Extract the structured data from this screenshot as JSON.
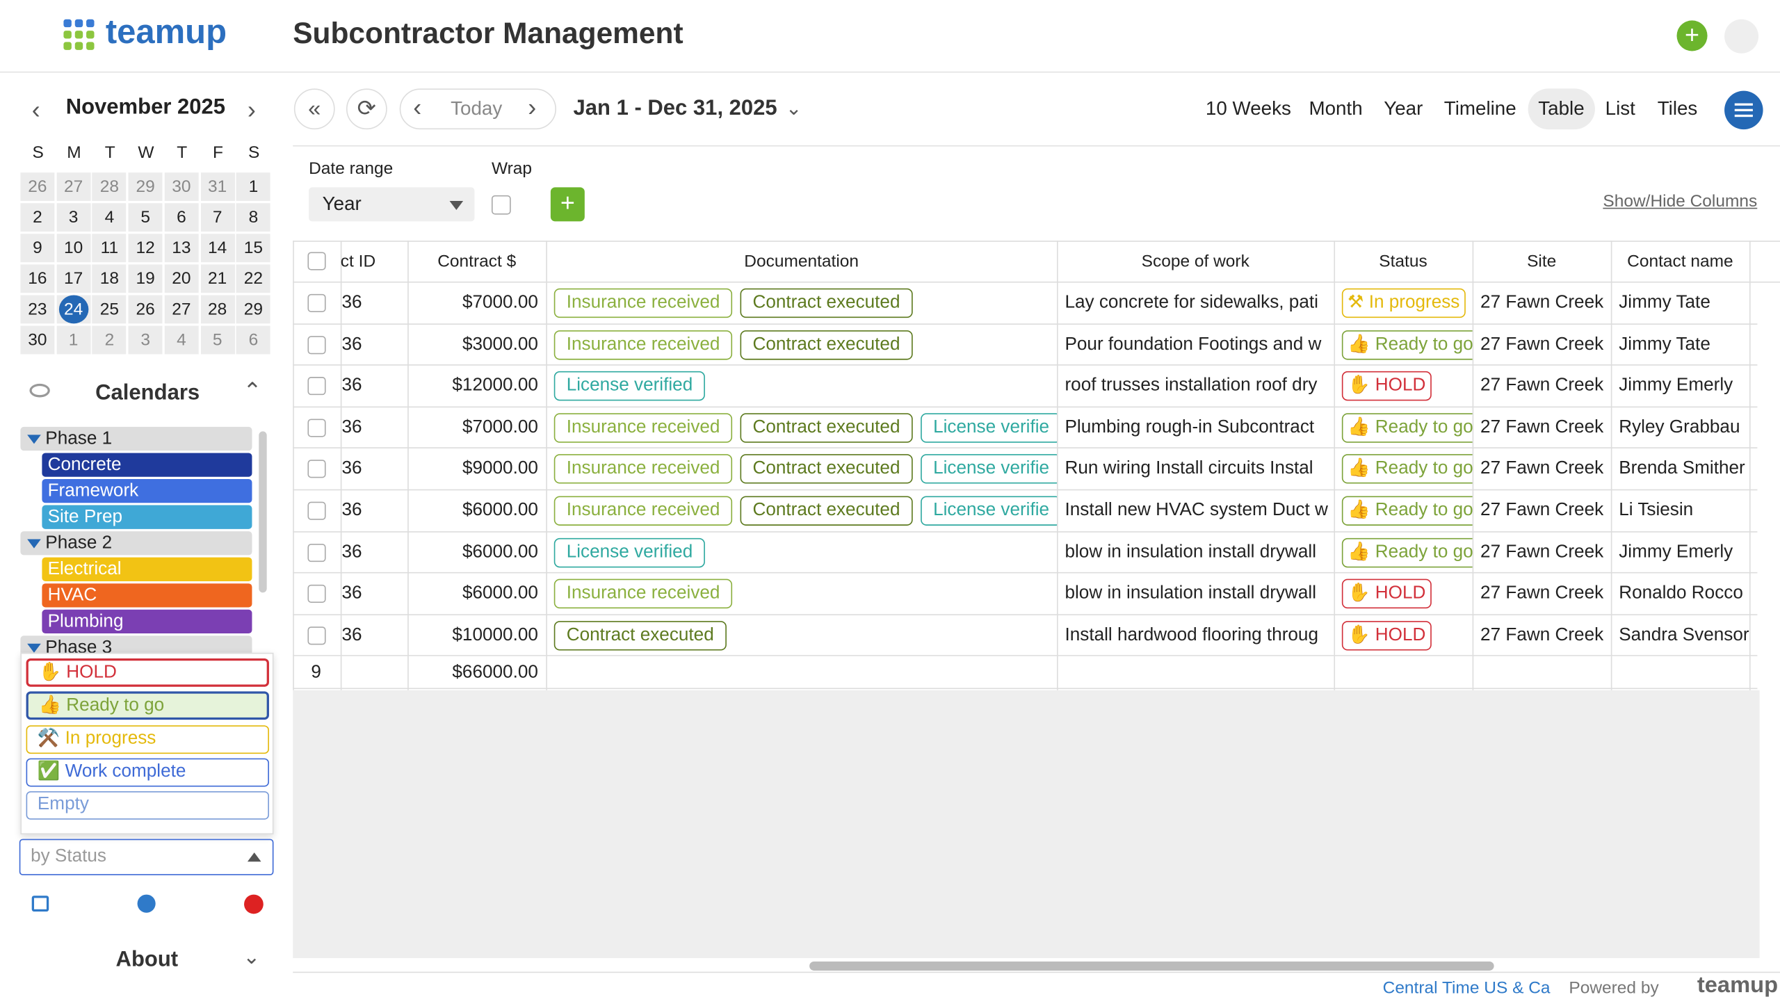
{
  "header": {
    "brand": "teamup",
    "title": "Subcontractor Management"
  },
  "mini_calendar": {
    "month": "November 2025",
    "weekdays": [
      "S",
      "M",
      "T",
      "W",
      "T",
      "F",
      "S"
    ],
    "weeks": [
      [
        26,
        27,
        28,
        29,
        30,
        31,
        1
      ],
      [
        2,
        3,
        4,
        5,
        6,
        7,
        8
      ],
      [
        9,
        10,
        11,
        12,
        13,
        14,
        15
      ],
      [
        16,
        17,
        18,
        19,
        20,
        21,
        22
      ],
      [
        23,
        24,
        25,
        26,
        27,
        28,
        29
      ],
      [
        30,
        1,
        2,
        3,
        4,
        5,
        6
      ]
    ]
  },
  "calendars": {
    "title": "Calendars",
    "groups": [
      {
        "name": "Phase 1",
        "items": [
          {
            "name": "Concrete",
            "color": "#1f3a9c"
          },
          {
            "name": "Framework",
            "color": "#3f6fe0"
          },
          {
            "name": "Site Prep",
            "color": "#3fa8d6"
          }
        ]
      },
      {
        "name": "Phase 2",
        "items": [
          {
            "name": "Electrical",
            "color": "#f2c314"
          },
          {
            "name": "HVAC",
            "color": "#ef661f"
          },
          {
            "name": "Plumbing",
            "color": "#7b3fb3"
          }
        ]
      },
      {
        "name": "Phase 3",
        "items": []
      }
    ]
  },
  "status_options": [
    {
      "label": "✋ HOLD",
      "color": "#d2303a"
    },
    {
      "label": "👍 Ready to go",
      "color": "#7da33a"
    },
    {
      "label": "⚒️ In progress",
      "color": "#e4b90c"
    },
    {
      "label": "✅ Work complete",
      "color": "#3e6ad6"
    },
    {
      "label": "Empty",
      "color": "#7a9cd8"
    }
  ],
  "status_filter": "by Status",
  "about": "About",
  "toolbar": {
    "today": "Today",
    "range": "Jan 1 - Dec 31, 2025",
    "views": [
      "10 Weeks",
      "Month",
      "Year",
      "Timeline",
      "Table",
      "List",
      "Tiles"
    ]
  },
  "filters": {
    "date_range_label": "Date range",
    "date_range_value": "Year",
    "wrap_label": "Wrap",
    "show_hide": "Show/Hide Columns"
  },
  "table": {
    "columns": [
      "ct ID",
      "Contract $",
      "Documentation",
      "Scope of work",
      "Status",
      "Site",
      "Contact name"
    ],
    "rows": [
      {
        "id": "36",
        "contract": "$7000.00",
        "docs": [
          {
            "label": "Insurance received",
            "color": "#8bb03f"
          },
          {
            "label": "Contract executed",
            "color": "#5d7a1f"
          }
        ],
        "scope": "Lay concrete for sidewalks, pati",
        "status": "⚒ In progress",
        "status_color": "#e4b90c",
        "site": "27 Fawn Creek",
        "contact": "Jimmy Tate"
      },
      {
        "id": "36",
        "contract": "$3000.00",
        "docs": [
          {
            "label": "Insurance received",
            "color": "#8bb03f"
          },
          {
            "label": "Contract executed",
            "color": "#5d7a1f"
          }
        ],
        "scope": "Pour foundation Footings and w",
        "status": "👍 Ready to go",
        "status_color": "#7da33a",
        "site": "27 Fawn Creek",
        "contact": "Jimmy Tate"
      },
      {
        "id": "36",
        "contract": "$12000.00",
        "docs": [
          {
            "label": "License verified",
            "color": "#2fa9a0"
          }
        ],
        "scope": "roof trusses installation roof dry",
        "status": "✋ HOLD",
        "status_color": "#d2303a",
        "site": "27 Fawn Creek",
        "contact": "Jimmy Emerly"
      },
      {
        "id": "36",
        "contract": "$7000.00",
        "docs": [
          {
            "label": "Insurance received",
            "color": "#8bb03f"
          },
          {
            "label": "Contract executed",
            "color": "#5d7a1f"
          },
          {
            "label": "License verifie",
            "color": "#2fa9a0"
          }
        ],
        "scope": "Plumbing rough-in Subcontract",
        "status": "👍 Ready to go",
        "status_color": "#7da33a",
        "site": "27 Fawn Creek",
        "contact": "Ryley Grabbau"
      },
      {
        "id": "36",
        "contract": "$9000.00",
        "docs": [
          {
            "label": "Insurance received",
            "color": "#8bb03f"
          },
          {
            "label": "Contract executed",
            "color": "#5d7a1f"
          },
          {
            "label": "License verifie",
            "color": "#2fa9a0"
          }
        ],
        "scope": "Run wiring Install circuits  Instal",
        "status": "👍 Ready to go",
        "status_color": "#7da33a",
        "site": "27 Fawn Creek",
        "contact": "Brenda Smither"
      },
      {
        "id": "36",
        "contract": "$6000.00",
        "docs": [
          {
            "label": "Insurance received",
            "color": "#8bb03f"
          },
          {
            "label": "Contract executed",
            "color": "#5d7a1f"
          },
          {
            "label": "License verifie",
            "color": "#2fa9a0"
          }
        ],
        "scope": "Install new HVAC system Duct w",
        "status": "👍 Ready to go",
        "status_color": "#7da33a",
        "site": "27 Fawn Creek",
        "contact": "Li Tsiesin"
      },
      {
        "id": "36",
        "contract": "$6000.00",
        "docs": [
          {
            "label": "License verified",
            "color": "#2fa9a0"
          }
        ],
        "scope": "blow in insulation install drywall",
        "status": "👍 Ready to go",
        "status_color": "#7da33a",
        "site": "27 Fawn Creek",
        "contact": "Jimmy Emerly"
      },
      {
        "id": "36",
        "contract": "$6000.00",
        "docs": [
          {
            "label": "Insurance received",
            "color": "#8bb03f"
          }
        ],
        "scope": "blow in insulation install drywall",
        "status": "✋ HOLD",
        "status_color": "#d2303a",
        "site": "27 Fawn Creek",
        "contact": "Ronaldo Rocco"
      },
      {
        "id": "36",
        "contract": "$10000.00",
        "docs": [
          {
            "label": "Contract executed",
            "color": "#5d7a1f"
          }
        ],
        "scope": "Install hardwood flooring throug",
        "status": "✋ HOLD",
        "status_color": "#d2303a",
        "site": "27 Fawn Creek",
        "contact": "Sandra Svensor"
      }
    ],
    "count": "9",
    "total": "$66000.00"
  },
  "footer": {
    "timezone": "Central Time US & Ca",
    "powered": "Powered by",
    "brand": "teamup"
  }
}
